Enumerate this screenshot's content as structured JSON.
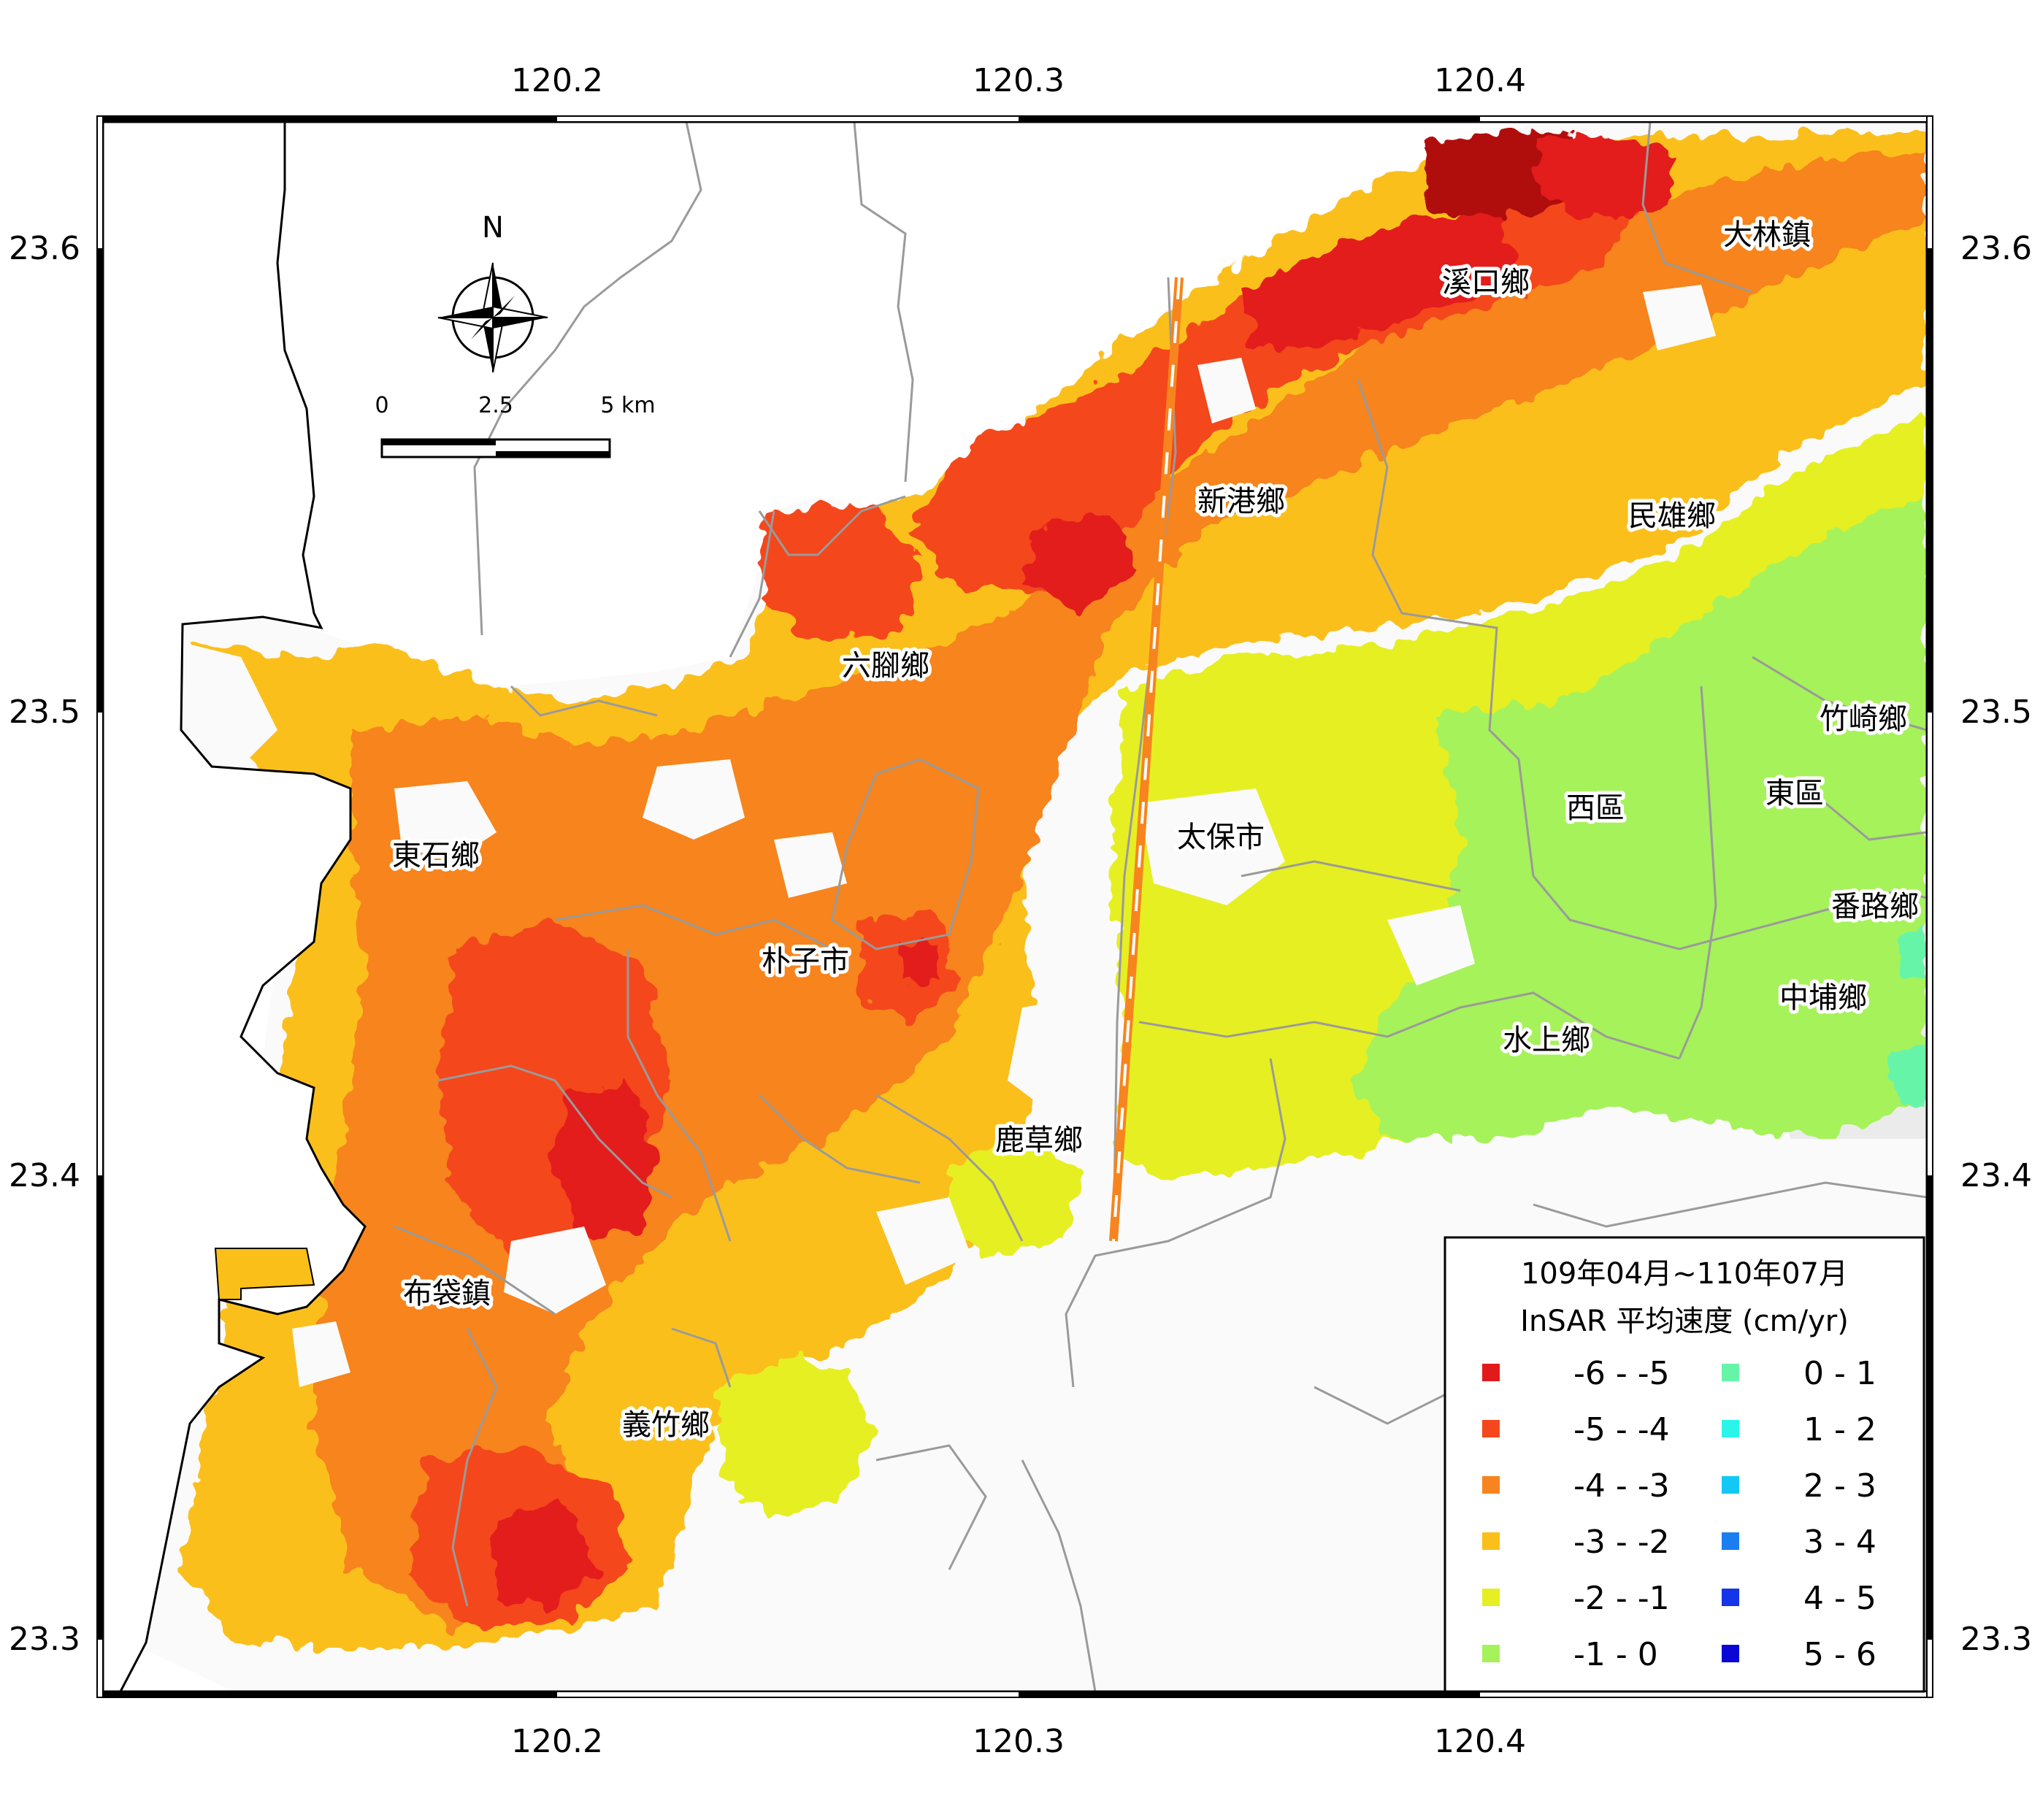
{
  "map": {
    "lon_ticks": [
      "120.2",
      "120.3",
      "120.4"
    ],
    "lat_ticks": [
      "23.6",
      "23.5",
      "23.4",
      "23.3"
    ],
    "north_label": "N",
    "scale_labels": [
      "0",
      "2.5",
      "5 km"
    ],
    "places": [
      {
        "id": "xikou",
        "name": "溪口鄉"
      },
      {
        "id": "dalin",
        "name": "大林鎮"
      },
      {
        "id": "xingang",
        "name": "新港鄉"
      },
      {
        "id": "minxiong",
        "name": "民雄鄉"
      },
      {
        "id": "liujiao",
        "name": "六腳鄉"
      },
      {
        "id": "zhuqi",
        "name": "竹崎鄉"
      },
      {
        "id": "west",
        "name": "西區"
      },
      {
        "id": "east",
        "name": "東區"
      },
      {
        "id": "taibao",
        "name": "太保市"
      },
      {
        "id": "dongshi",
        "name": "東石鄉"
      },
      {
        "id": "fanlu",
        "name": "番路鄉"
      },
      {
        "id": "puzi",
        "name": "朴子市"
      },
      {
        "id": "zhongpu",
        "name": "中埔鄉"
      },
      {
        "id": "shuishang",
        "name": "水上鄉"
      },
      {
        "id": "lucao",
        "name": "鹿草鄉"
      },
      {
        "id": "budai",
        "name": "布袋鎮"
      },
      {
        "id": "yizhu",
        "name": "義竹鄉"
      }
    ]
  },
  "legend": {
    "title_line1": "109年04月~110年07月",
    "title_line2": "InSAR 平均速度 (cm/yr)",
    "items": [
      {
        "label": "-6 - -5",
        "color": "#e31a1c"
      },
      {
        "label": "-5 - -4",
        "color": "#f4471d"
      },
      {
        "label": "-4 - -3",
        "color": "#f7841e"
      },
      {
        "label": "-3 - -2",
        "color": "#fbbf1a"
      },
      {
        "label": "-2 - -1",
        "color": "#e6ef24"
      },
      {
        "label": "-1 - 0",
        "color": "#a6f25a"
      },
      {
        "label": "0 - 1",
        "color": "#66f5a8"
      },
      {
        "label": "1 - 2",
        "color": "#2af5e8"
      },
      {
        "label": "2 - 3",
        "color": "#14c8f5"
      },
      {
        "label": "3 - 4",
        "color": "#1a7ef0"
      },
      {
        "label": "4 - 5",
        "color": "#1435e8"
      },
      {
        "label": "5 - 6",
        "color": "#0a06d6"
      }
    ]
  }
}
